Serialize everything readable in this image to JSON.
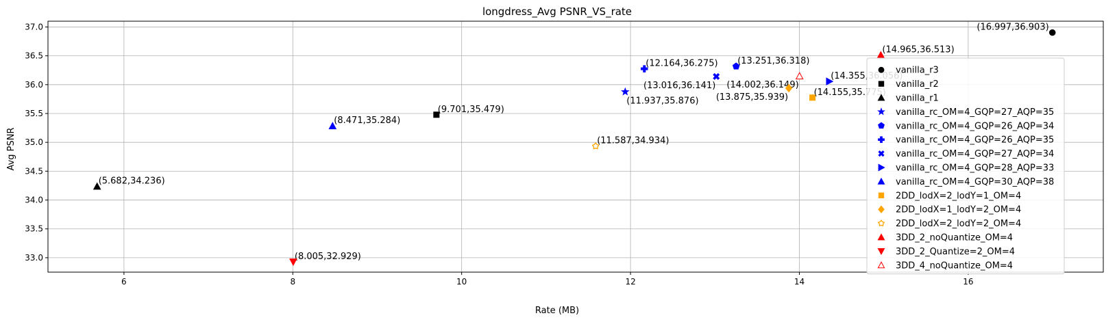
{
  "chart_data": {
    "type": "scatter",
    "title": "longdress_Avg PSNR_VS_rate",
    "xlabel": "Rate (MB)",
    "ylabel": "Avg PSNR",
    "xlim": [
      5.1,
      17.6
    ],
    "ylim": [
      32.75,
      37.1
    ],
    "grid": true,
    "legend_position": "right",
    "xticks": [
      6,
      8,
      10,
      12,
      14,
      16
    ],
    "yticks": [
      33.0,
      33.5,
      34.0,
      34.5,
      35.0,
      35.5,
      36.0,
      36.5,
      37.0
    ],
    "series": [
      {
        "name": "vanilla_r3",
        "marker": "circle",
        "color": "#000000",
        "filled": true,
        "x": 16.997,
        "y": 36.903,
        "label": "(16.997,36.903)",
        "label_anchor": "end"
      },
      {
        "name": "vanilla_r2",
        "marker": "square",
        "color": "#000000",
        "filled": true,
        "x": 9.701,
        "y": 35.479,
        "label": "(9.701,35.479)",
        "label_anchor": "start"
      },
      {
        "name": "vanilla_r1",
        "marker": "triangle-up",
        "color": "#000000",
        "filled": true,
        "x": 5.682,
        "y": 34.236,
        "label": "(5.682,34.236)",
        "label_anchor": "start"
      },
      {
        "name": "vanilla_rc_OM=4_GQP=27_AQP=35",
        "marker": "star",
        "color": "#0000ff",
        "filled": true,
        "x": 11.937,
        "y": 35.876,
        "label": "(11.937,35.876)",
        "label_anchor": "start-below"
      },
      {
        "name": "vanilla_rc_OM=4_GQP=26_AQP=34",
        "marker": "pentagon",
        "color": "#0000ff",
        "filled": true,
        "x": 13.251,
        "y": 36.318,
        "label": "(13.251,36.318)",
        "label_anchor": "start"
      },
      {
        "name": "vanilla_rc_OM=4_GQP=26_AQP=35",
        "marker": "plus",
        "color": "#0000ff",
        "filled": true,
        "x": 12.164,
        "y": 36.275,
        "label": "(12.164,36.275)",
        "label_anchor": "start"
      },
      {
        "name": "vanilla_rc_OM=4_GQP=27_AQP=34",
        "marker": "x",
        "color": "#0000ff",
        "filled": true,
        "x": 13.016,
        "y": 36.141,
        "label": "(13.016,36.141)",
        "label_anchor": "end-below"
      },
      {
        "name": "vanilla_rc_OM=4_GQP=28_AQP=33",
        "marker": "triangle-right",
        "color": "#0000ff",
        "filled": true,
        "x": 14.355,
        "y": 36.056,
        "label": "(14.355,36.056)",
        "label_anchor": "start"
      },
      {
        "name": "vanilla_rc_OM=4_GQP=30_AQP=38",
        "marker": "triangle-up",
        "color": "#0000ff",
        "filled": true,
        "x": 8.471,
        "y": 35.284,
        "label": "(8.471,35.284)",
        "label_anchor": "start"
      },
      {
        "name": "2DD_lodX=2_lodY=1_OM=4",
        "marker": "square",
        "color": "#ffa500",
        "filled": true,
        "x": 14.155,
        "y": 35.775,
        "label": "(14.155,35.775)",
        "label_anchor": "start"
      },
      {
        "name": "2DD_lodX=1_lodY=2_OM=4",
        "marker": "diamond",
        "color": "#ffa500",
        "filled": true,
        "x": 13.875,
        "y": 35.939,
        "label": "(13.875,35.939)",
        "label_anchor": "end-below"
      },
      {
        "name": "2DD_lodX=2_lodY=2_OM=4",
        "marker": "gear",
        "color": "#ffa500",
        "filled": false,
        "x": 11.587,
        "y": 34.934,
        "label": "(11.587,34.934)",
        "label_anchor": "start"
      },
      {
        "name": "3DD_2_noQuantize_OM=4",
        "marker": "triangle-up",
        "color": "#ff0000",
        "filled": true,
        "x": 14.965,
        "y": 36.513,
        "label": "(14.965,36.513)",
        "label_anchor": "start"
      },
      {
        "name": "3DD_2_Quantize=2_OM=4",
        "marker": "triangle-down",
        "color": "#ff0000",
        "filled": true,
        "x": 8.005,
        "y": 32.929,
        "label": "(8.005,32.929)",
        "label_anchor": "start"
      },
      {
        "name": "3DD_4_noQuantize_OM=4",
        "marker": "triangle-up",
        "color": "#ff0000",
        "filled": false,
        "x": 14.002,
        "y": 36.149,
        "label": "(14.002,36.149)",
        "label_anchor": "end-below"
      }
    ]
  }
}
